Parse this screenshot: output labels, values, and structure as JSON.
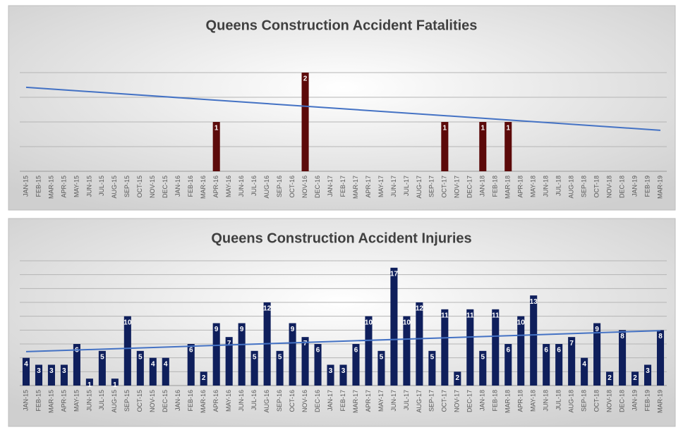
{
  "chart_data": [
    {
      "type": "bar",
      "title": "Queens Construction Accident Fatalities",
      "categories": [
        "JAN-15",
        "FEB-15",
        "MAR-15",
        "APR-15",
        "MAY-15",
        "JUN-15",
        "JUL-15",
        "AUG-15",
        "SEP-15",
        "OCT-15",
        "NOV-15",
        "DEC-15",
        "JAN-16",
        "FEB-16",
        "MAR-16",
        "APR-16",
        "MAY-16",
        "JUN-16",
        "JUL-16",
        "AUG-16",
        "SEP-16",
        "OCT-16",
        "NOV-16",
        "DEC-16",
        "JAN-17",
        "FEB-17",
        "MAR-17",
        "APR-17",
        "MAY-17",
        "JUN-17",
        "JUL-17",
        "AUG-17",
        "SEP-17",
        "OCT-17",
        "NOV-17",
        "DEC-17",
        "JAN-18",
        "FEB-18",
        "MAR-18",
        "APR-18",
        "MAY-18",
        "JUN-18",
        "JUL-18",
        "AUG-18",
        "SEP-18",
        "OCT-18",
        "NOV-18",
        "DEC-18",
        "JAN-19",
        "FEB-19",
        "MAR-19"
      ],
      "values": [
        null,
        null,
        null,
        null,
        null,
        null,
        null,
        null,
        null,
        null,
        null,
        null,
        null,
        null,
        null,
        1,
        null,
        null,
        null,
        null,
        null,
        null,
        2,
        null,
        null,
        null,
        null,
        null,
        null,
        null,
        null,
        null,
        null,
        1,
        null,
        null,
        1,
        null,
        1,
        null,
        null,
        null,
        null,
        null,
        null,
        null,
        null,
        null,
        null,
        null,
        null
      ],
      "color": "#5c0a0a",
      "trendline": true,
      "trend_color": "#4472c4",
      "ylim": [
        0,
        2.5
      ],
      "yticks": [
        0,
        0.5,
        1,
        1.5,
        2
      ],
      "grid": true
    },
    {
      "type": "bar",
      "title": "Queens Construction Accident Injuries",
      "categories": [
        "JAN-15",
        "FEB-15",
        "MAR-15",
        "APR-15",
        "MAY-15",
        "JUN-15",
        "JUL-15",
        "AUG-15",
        "SEP-15",
        "OCT-15",
        "NOV-15",
        "DEC-15",
        "JAN-16",
        "FEB-16",
        "MAR-16",
        "APR-16",
        "MAY-16",
        "JUN-16",
        "JUL-16",
        "AUG-16",
        "SEP-16",
        "OCT-16",
        "NOV-16",
        "DEC-16",
        "JAN-17",
        "FEB-17",
        "MAR-17",
        "APR-17",
        "MAY-17",
        "JUN-17",
        "JUL-17",
        "AUG-17",
        "SEP-17",
        "OCT-17",
        "NOV-17",
        "DEC-17",
        "JAN-18",
        "FEB-18",
        "MAR-18",
        "APR-18",
        "MAY-18",
        "JUN-18",
        "JUL-18",
        "AUG-18",
        "SEP-18",
        "OCT-18",
        "NOV-18",
        "DEC-18",
        "JAN-19",
        "FEB-19",
        "MAR-19"
      ],
      "values": [
        4,
        3,
        3,
        3,
        6,
        1,
        5,
        1,
        10,
        5,
        4,
        4,
        null,
        6,
        2,
        9,
        7,
        9,
        5,
        12,
        5,
        9,
        7,
        6,
        3,
        3,
        6,
        10,
        5,
        17,
        10,
        12,
        5,
        11,
        2,
        11,
        5,
        11,
        6,
        10,
        13,
        6,
        6,
        7,
        4,
        9,
        2,
        8,
        2,
        3,
        8
      ],
      "color": "#0f1f5c",
      "trendline": true,
      "trend_color": "#4472c4",
      "ylim": [
        0,
        18
      ],
      "yticks": [
        0,
        2,
        4,
        6,
        8,
        10,
        12,
        14,
        16,
        18
      ],
      "grid": true
    }
  ]
}
